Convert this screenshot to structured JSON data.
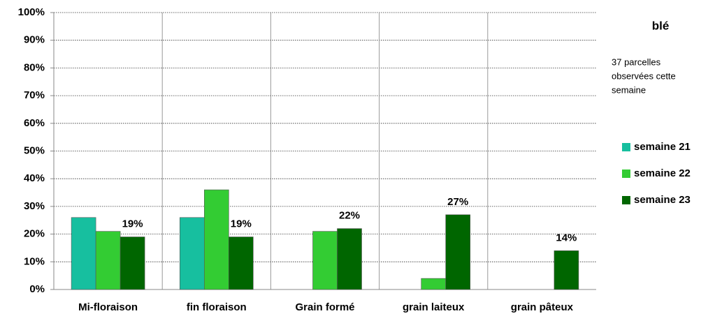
{
  "chart_data": {
    "type": "bar",
    "title": "blé",
    "note": [
      "37 parcelles",
      "observées cette",
      "semaine"
    ],
    "categories": [
      "Mi-floraison",
      "fin floraison",
      "Grain formé",
      "grain laiteux",
      "grain pâteux"
    ],
    "series": [
      {
        "name": "semaine 21",
        "color": "#17bf9f",
        "values": [
          26,
          26,
          null,
          null,
          null
        ]
      },
      {
        "name": "semaine 22",
        "color": "#33cc33",
        "values": [
          21,
          36,
          21,
          4,
          null
        ]
      },
      {
        "name": "semaine 23",
        "color": "#006600",
        "values": [
          19,
          19,
          22,
          27,
          14
        ],
        "value_labels": [
          "19%",
          "19%",
          "22%",
          "27%",
          "14%"
        ]
      }
    ],
    "ylim": [
      0,
      100
    ],
    "yticks": [
      {
        "value": 0,
        "label": "0%"
      },
      {
        "value": 10,
        "label": "10%"
      },
      {
        "value": 20,
        "label": "20%"
      },
      {
        "value": 30,
        "label": "30%"
      },
      {
        "value": 40,
        "label": "40%"
      },
      {
        "value": 50,
        "label": "50%"
      },
      {
        "value": 60,
        "label": "60%"
      },
      {
        "value": 70,
        "label": "70%"
      },
      {
        "value": 80,
        "label": "80%"
      },
      {
        "value": 90,
        "label": "90%"
      },
      {
        "value": 100,
        "label": "100%"
      }
    ],
    "grid": true
  }
}
